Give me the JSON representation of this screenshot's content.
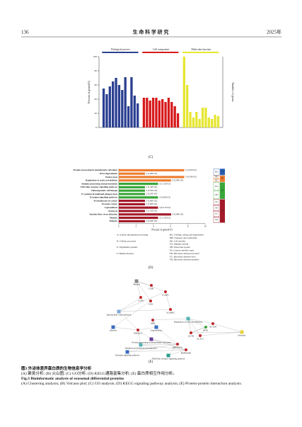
{
  "header": {
    "page": "136",
    "journal": "生 命 科 学 研 究",
    "year": "2025年"
  },
  "chart_data": [
    {
      "type": "bar",
      "panel": "(C)",
      "ylabel": "Percent of genes(%)",
      "y2label": "Number of genes",
      "ylim": [
        0,
        100
      ],
      "yticks": [
        0,
        20,
        40,
        60,
        80,
        100
      ],
      "series": [
        {
          "name": "Biological process",
          "color": "#2b3f91",
          "values": [
            55,
            47,
            58,
            65,
            70,
            60,
            53,
            71,
            30,
            71,
            45,
            34
          ]
        },
        {
          "name": "Cell component",
          "color": "#d7191c",
          "values": [
            42,
            42,
            38,
            42,
            42,
            38,
            40,
            36,
            42,
            36,
            30,
            20
          ]
        },
        {
          "name": "Molecular function",
          "color": "#e6e632",
          "values": [
            100,
            60,
            22,
            14,
            22,
            12,
            28,
            28,
            14,
            12,
            18,
            16
          ]
        }
      ]
    },
    {
      "type": "barh",
      "panel": "(D)",
      "xlabel": "Percent of genes(%)",
      "xlim": [
        0,
        10
      ],
      "xticks": [
        0,
        2,
        4,
        6,
        8,
        10
      ],
      "categories": [
        "Protein processing in endoplasmic reticulum",
        "RNA degradation",
        "Endocytosis",
        "Regulation of actin cytoskeleton",
        "Antigen processing and presentation",
        "NOD-like receptor signaling pathway",
        "Hematopoietic cell lineage",
        "Fc gamma R-mediated phagocytosis",
        "Estrogen signaling pathway",
        "Proteoglycans in cancer",
        "Prostate cancer",
        "Legionellosis",
        "Pertussis",
        "Epstein-Barr virus infection",
        "Measles",
        "Malaria"
      ],
      "values": [
        7.58,
        3.03,
        7.58,
        6.06,
        4.55,
        3.03,
        3.03,
        3.03,
        4.55,
        3.03,
        3.03,
        4.55,
        3.03,
        6.06,
        4.55,
        3.03
      ],
      "bar_notes": [
        "5 (4.42E-02)",
        "2 (1.96E-03)",
        "5 (4.54E-02)",
        "4 (3.99E-03)",
        "3 (1.72E-03)",
        "2 (1.30E-02)",
        "2 (3.05E-02)",
        "2 (3.05E-02)",
        "3 (3.60E-03)",
        "2 (3.60E-02)",
        "2 (3.60E-02)",
        "3 (6.51E-04)",
        "2 (1.16E-02)",
        "4 (3.99E-03)",
        "3 (1.15E-03)",
        "2 (9.93E-03)"
      ],
      "colors": [
        "#ed7d31",
        "#ed7d31",
        "#ed7d31",
        "#ed7d31",
        "#3aa63a",
        "#3aa63a",
        "#3aa63a",
        "#3aa63a",
        "#3aa63a",
        "#a31a2a",
        "#a31a2a",
        "#a31a2a",
        "#a31a2a",
        "#a31a2a",
        "#a31a2a",
        "#a31a2a"
      ],
      "side_groups": [
        {
          "name": "A",
          "subs": [
            "BG"
          ],
          "color": "#2b5fb4"
        },
        {
          "name": "B",
          "subs": [
            "DB",
            "DE"
          ],
          "color": "#ed7d31"
        },
        {
          "name": "E",
          "subs": [
            "EA",
            "EB"
          ],
          "color": "#3aa63a"
        },
        {
          "name": "F",
          "subs": [
            "FA",
            "FB",
            "FC",
            "FD"
          ],
          "color": "#a31a2a"
        }
      ],
      "notes": [
        "A: Genetic information processing",
        "D: Cellular processes",
        "E: Organismal systems",
        "F: Human diseases",
        "BG: Folding, sorting and degradation",
        "DB: Transport and catabolism",
        "DE: Cell motility",
        "EA: Immune system",
        "EB: Endocrine system",
        "FA: Cancers-specific types",
        "FB: Infectious diseases-bacterial",
        "FC: Infectious diseases-viral",
        "FD: Infectious diseases-parasitic"
      ]
    }
  ],
  "network": {
    "panel": "(E)",
    "nodes": [
      {
        "label": "Malaria",
        "color": "#8a8a8a",
        "kind": "pathway"
      },
      {
        "label": "CD81",
        "color": "#c0282d",
        "kind": "protein"
      },
      {
        "label": "ICAM1",
        "color": "#c0282d",
        "kind": "protein"
      },
      {
        "label": "CD38",
        "color": "#c0282d",
        "kind": "protein"
      },
      {
        "label": "CD9",
        "color": "#c0282d",
        "kind": "protein"
      },
      {
        "label": "Epstein-Barr virus infection",
        "color": "#7fa8d6",
        "kind": "pathway"
      },
      {
        "label": "SCARB1",
        "color": "#c0282d",
        "kind": "protein"
      },
      {
        "label": "ABI1",
        "color": "#c0282d",
        "kind": "protein"
      },
      {
        "label": "Measles",
        "color": "#3a6cc1",
        "kind": "pathway"
      },
      {
        "label": "HSPA1A",
        "color": "#c0282d",
        "kind": "protein"
      },
      {
        "label": "Legionellosis",
        "color": "#3a6cc1",
        "kind": "pathway"
      },
      {
        "label": "Regulation of actin cytoskeleton",
        "color": "#56b4b4",
        "kind": "pathway"
      },
      {
        "label": "ACTB",
        "color": "#c0282d",
        "kind": "protein"
      },
      {
        "label": "ACTG1",
        "color": "#c0282d",
        "kind": "protein"
      },
      {
        "label": "PFN1",
        "color": "#3aa63a",
        "kind": "protein"
      },
      {
        "label": "ACTN4",
        "color": "#c0282d",
        "kind": "protein"
      },
      {
        "label": "Pertussis",
        "color": "#e6d23a",
        "kind": "pathway"
      },
      {
        "label": "Protein processing in endoplasmic reticulum",
        "color": "#6a3d9a",
        "kind": "pathway"
      },
      {
        "label": "Antigen processing and presentation",
        "color": "#56b4b4",
        "kind": "pathway"
      },
      {
        "label": "HSP90AA1",
        "color": "#c0282d",
        "kind": "protein"
      },
      {
        "label": "HSP90AB1",
        "color": "#c0282d",
        "kind": "protein"
      },
      {
        "label": "Estrogen signaling pathway",
        "color": "#3a6cc1",
        "kind": "pathway"
      },
      {
        "label": "NOD-like receptor signaling pathway",
        "color": "#2a9d8f",
        "kind": "pathway"
      }
    ]
  },
  "caption": {
    "title_cn": "图3  外泌体差异蛋白质的生物信息学分析",
    "text_cn": "(A) 聚类分析; (B) 火山图; (C) GO分析; (D) KEGG通路富集分析; (E) 蛋白质相互作用分析。",
    "title_en": "Fig.3  Bioinformatic analysis of exosomal differential proteins",
    "text_en": "(A) Clustering analysis; (B) Volcano plot; (C) GO analysis; (D) KEGG signaling pathway analysis; (E) Protein-protein interaction analysis."
  }
}
